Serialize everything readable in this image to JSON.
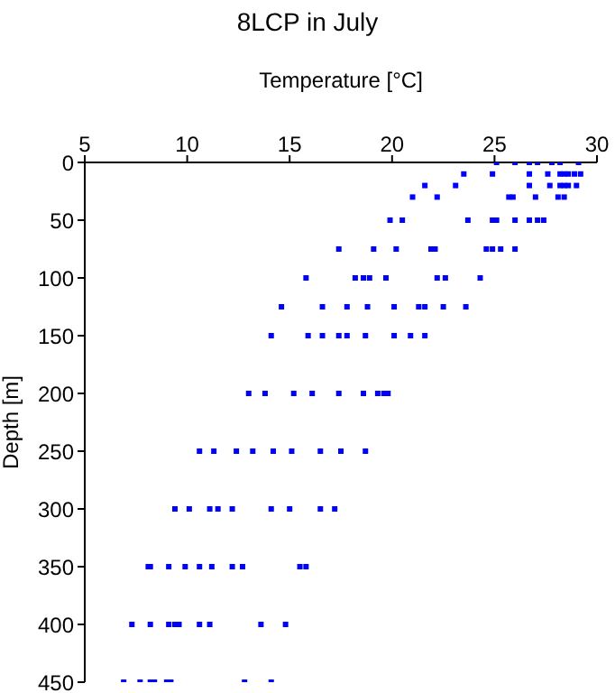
{
  "chart_data": {
    "type": "scatter",
    "title": "8LCP in July",
    "xlabel": "Temperature [°C]",
    "ylabel": "Depth [m]",
    "marker": "square",
    "color": "#0000ff",
    "x": [
      25.1,
      26.0,
      26.7,
      27.1,
      27.8,
      28.2,
      29.1,
      23.5,
      24.9,
      26.7,
      27.6,
      28.2,
      28.4,
      28.6,
      28.9,
      29.2,
      21.6,
      23.1,
      26.7,
      27.7,
      28.2,
      28.4,
      28.6,
      29.0,
      21.0,
      22.2,
      25.7,
      25.9,
      27.0,
      28.1,
      28.4,
      19.9,
      20.5,
      23.7,
      24.9,
      25.1,
      26.0,
      26.7,
      27.1,
      27.4,
      17.4,
      19.1,
      20.2,
      21.9,
      22.1,
      24.6,
      24.9,
      25.3,
      26.0,
      15.8,
      18.2,
      18.6,
      18.9,
      19.7,
      22.2,
      22.6,
      24.3,
      14.6,
      16.6,
      17.8,
      18.8,
      20.1,
      21.3,
      21.6,
      22.5,
      23.6,
      14.1,
      15.9,
      16.6,
      17.4,
      17.8,
      18.7,
      20.1,
      20.9,
      21.6,
      13.0,
      13.8,
      15.2,
      16.1,
      17.4,
      18.6,
      19.3,
      19.6,
      19.8,
      10.6,
      11.3,
      12.4,
      13.2,
      14.2,
      15.1,
      16.5,
      17.5,
      18.7,
      9.4,
      10.1,
      11.1,
      11.5,
      12.2,
      14.1,
      15.0,
      16.5,
      17.2,
      8.1,
      8.2,
      9.1,
      9.9,
      10.6,
      11.2,
      12.2,
      12.7,
      15.5,
      15.8,
      7.3,
      8.2,
      9.1,
      9.4,
      9.6,
      10.6,
      11.1,
      13.6,
      14.8,
      6.9,
      7.7,
      8.2,
      8.4,
      9.0,
      9.2,
      12.8,
      14.1
    ],
    "values": [
      0,
      0,
      0,
      0,
      0,
      0,
      0,
      10,
      10,
      10,
      10,
      10,
      10,
      10,
      10,
      10,
      20,
      20,
      20,
      20,
      20,
      20,
      20,
      20,
      30,
      30,
      30,
      30,
      30,
      30,
      30,
      50,
      50,
      50,
      50,
      50,
      50,
      50,
      50,
      50,
      75,
      75,
      75,
      75,
      75,
      75,
      75,
      75,
      75,
      100,
      100,
      100,
      100,
      100,
      100,
      100,
      100,
      125,
      125,
      125,
      125,
      125,
      125,
      125,
      125,
      125,
      150,
      150,
      150,
      150,
      150,
      150,
      150,
      150,
      150,
      200,
      200,
      200,
      200,
      200,
      200,
      200,
      200,
      200,
      250,
      250,
      250,
      250,
      250,
      250,
      250,
      250,
      250,
      300,
      300,
      300,
      300,
      300,
      300,
      300,
      300,
      300,
      350,
      350,
      350,
      350,
      350,
      350,
      350,
      350,
      350,
      350,
      400,
      400,
      400,
      400,
      400,
      400,
      400,
      400,
      400,
      450,
      450,
      450,
      450,
      450,
      450,
      450,
      450
    ],
    "xlim": [
      5,
      30
    ],
    "xticks": [
      5,
      10,
      15,
      20,
      25,
      30
    ],
    "ylim": [
      450,
      0
    ],
    "yticks": [
      0,
      50,
      100,
      150,
      200,
      250,
      300,
      350,
      400,
      450
    ]
  }
}
